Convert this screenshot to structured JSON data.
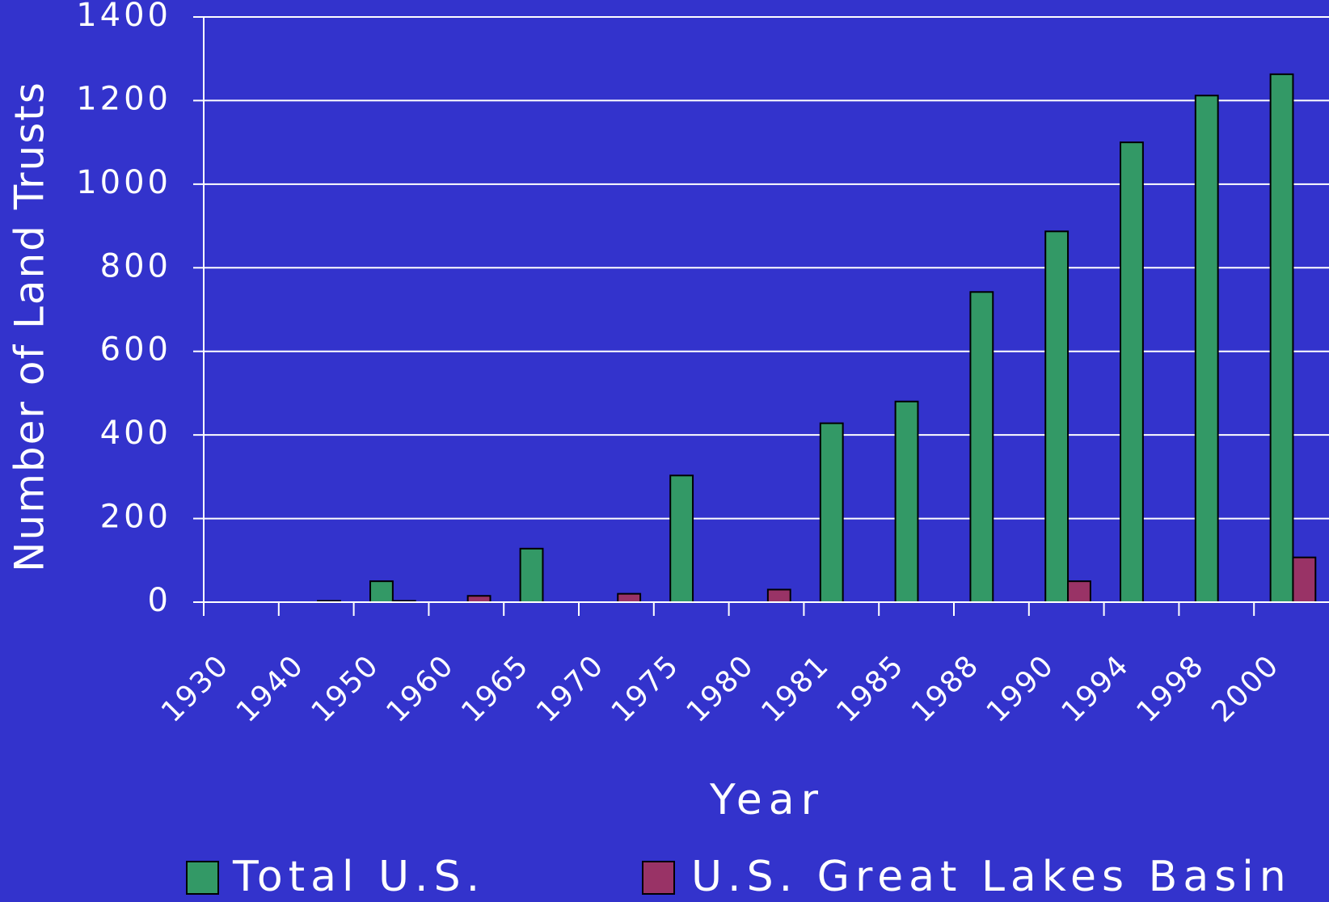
{
  "chart_data": {
    "type": "bar",
    "y_label": "Number of Land Trusts",
    "x_label": "Year",
    "categories": [
      "1930",
      "1940",
      "1950",
      "1960",
      "1965",
      "1970",
      "1975",
      "1980",
      "1981",
      "1985",
      "1988",
      "1990",
      "1994",
      "1998",
      "2000"
    ],
    "series": [
      {
        "name": "Total U.S.",
        "color": "#339966",
        "values": [
          0,
          0,
          50,
          0,
          128,
          0,
          303,
          0,
          428,
          480,
          742,
          887,
          1100,
          1212,
          1263
        ]
      },
      {
        "name": "U.S. Great Lakes Basin",
        "color": "#993366",
        "values": [
          0,
          3,
          3,
          15,
          0,
          20,
          0,
          30,
          0,
          0,
          0,
          50,
          0,
          0,
          107
        ]
      }
    ],
    "ylim": [
      0,
      1400
    ],
    "yticks": [
      0,
      200,
      400,
      600,
      800,
      1000,
      1200,
      1400
    ],
    "grid": true
  }
}
